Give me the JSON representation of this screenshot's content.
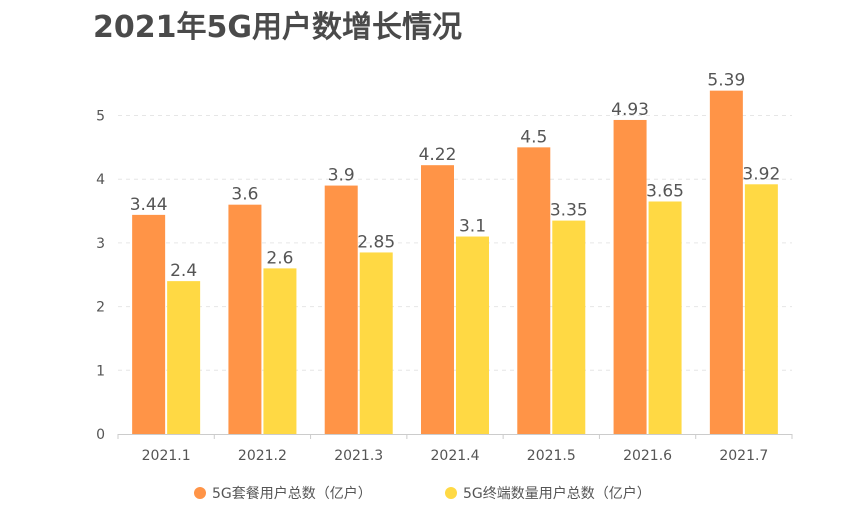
{
  "chart_data": {
    "type": "bar",
    "title": "2021年5G用户数增长情况",
    "categories": [
      "2021.1",
      "2021.2",
      "2021.3",
      "2021.4",
      "2021.5",
      "2021.6",
      "2021.7"
    ],
    "series": [
      {
        "name": "5G套餐用户总数（亿户）",
        "values": [
          3.44,
          3.6,
          3.9,
          4.22,
          4.5,
          4.93,
          5.39
        ],
        "color": "#FF9447"
      },
      {
        "name": "5G终端数量用户总数（亿户）",
        "values": [
          2.4,
          2.6,
          2.85,
          3.1,
          3.35,
          3.65,
          3.92
        ],
        "color": "#FFD944"
      }
    ],
    "yticks": [
      0,
      1,
      2,
      3,
      4,
      5
    ],
    "ylim": [
      0,
      5.6
    ],
    "grid": true,
    "legend": "bottom-center",
    "xlabel": "",
    "ylabel": ""
  }
}
